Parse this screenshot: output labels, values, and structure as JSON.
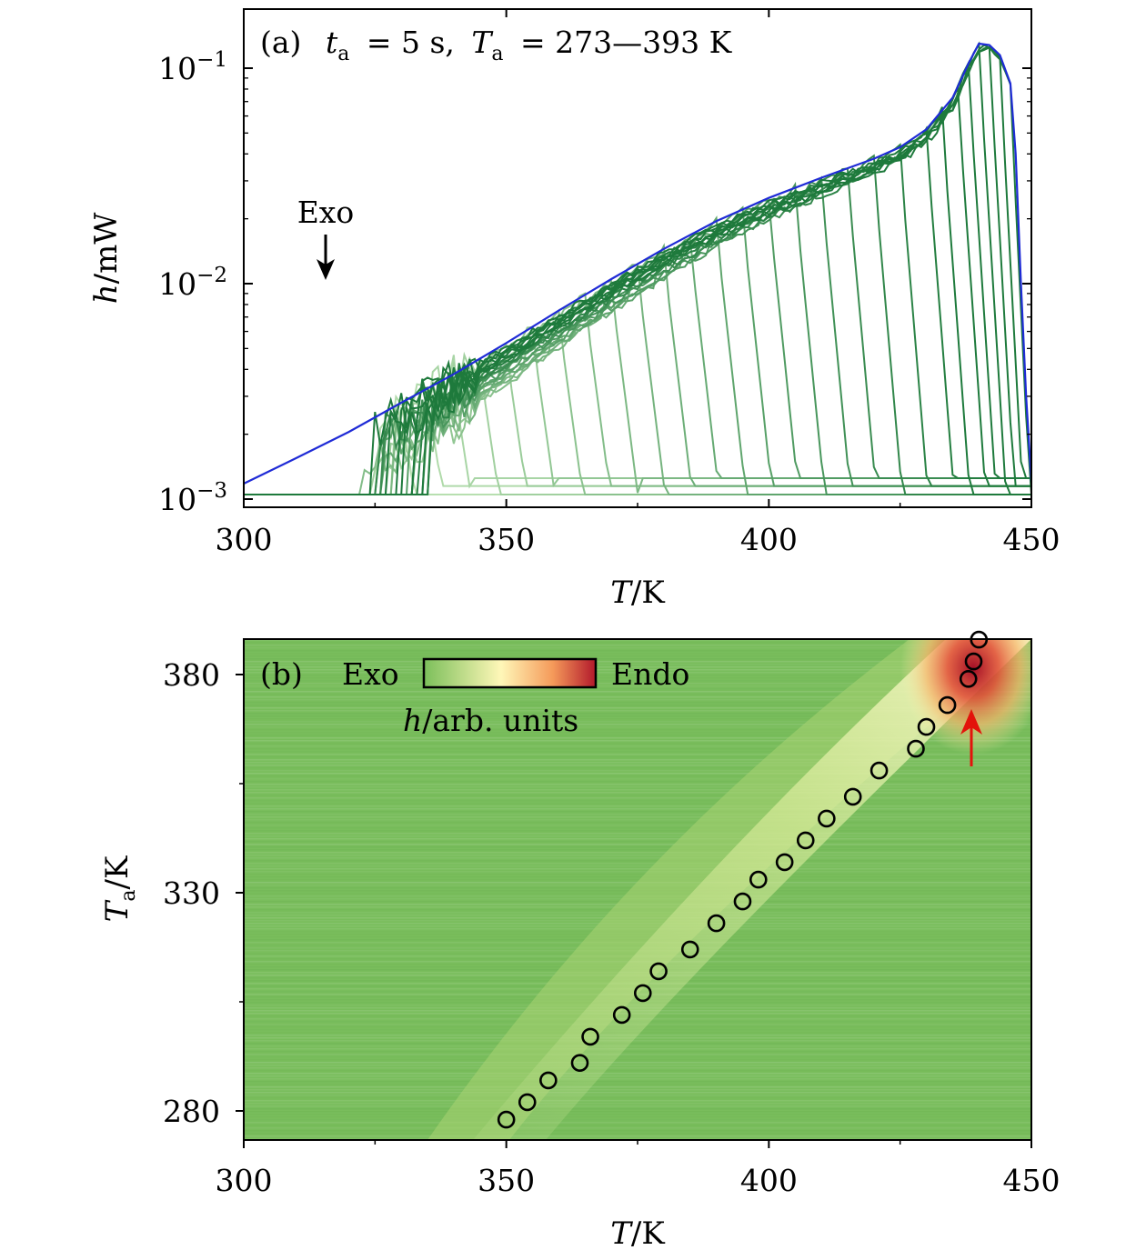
{
  "chart_data": [
    {
      "type": "line",
      "panel": "(a)",
      "annotation": {
        "prefix": "(a)",
        "ta": "t",
        "ta_sub": "a",
        "ta_eq": "= 5 s,",
        "Ta": "T",
        "Ta_sub": "a",
        "Ta_eq": "= 273—393 K"
      },
      "xlabel": "T/K",
      "ylabel": "h/mW",
      "xlim": [
        300,
        450
      ],
      "ylim": [
        0.001,
        0.2
      ],
      "yscale": "log",
      "xticks": [
        "300",
        "350",
        "400",
        "450"
      ],
      "yticks": [
        {
          "base": "10",
          "exp": "−1"
        },
        {
          "base": "10",
          "exp": "−2"
        },
        {
          "base": "10",
          "exp": "−3"
        }
      ],
      "exo_label": "Exo",
      "colors": {
        "envelope": "#1f2bd6",
        "curve_light": "#b7dfb0",
        "curve_dark": "#1e7a3c"
      },
      "envelope": {
        "x": [
          300,
          310,
          320,
          330,
          340,
          350,
          360,
          370,
          380,
          390,
          400,
          410,
          420,
          425,
          430,
          435,
          438,
          440,
          442,
          444,
          446,
          447,
          448,
          449,
          450
        ],
        "y": [
          0.00118,
          0.00155,
          0.00205,
          0.0028,
          0.0038,
          0.0053,
          0.0075,
          0.0105,
          0.0145,
          0.0195,
          0.025,
          0.031,
          0.038,
          0.043,
          0.052,
          0.073,
          0.105,
          0.13,
          0.128,
          0.115,
          0.085,
          0.04,
          0.01,
          0.003,
          0.0012
        ]
      },
      "ramp_peaks": [
        330,
        335,
        340,
        345,
        350,
        355,
        360,
        365,
        370,
        375,
        380,
        385,
        390,
        395,
        400,
        405,
        410,
        415,
        420,
        425,
        430,
        433,
        436,
        438,
        440,
        442,
        444,
        446
      ],
      "ramp_rise_start": 322
    },
    {
      "type": "heatmap",
      "panel": "(b)",
      "annotation": "(b)",
      "xlabel": "T/K",
      "ylabel": "Ta/K",
      "ylabel_main": "T",
      "ylabel_sub": "a",
      "ylabel_unit": "/K",
      "xlim": [
        300,
        450
      ],
      "ylim": [
        273,
        388
      ],
      "xticks": [
        "300",
        "350",
        "400",
        "450"
      ],
      "yticks": [
        "280",
        "330",
        "380"
      ],
      "colorbar": {
        "left_label": "Exo",
        "right_label": "Endo",
        "title": "h/arb. units",
        "colors": [
          "#7bbf5a",
          "#fff7b8",
          "#f59a5a",
          "#b2182b"
        ]
      },
      "peak_markers": {
        "x": [
          350,
          354,
          358,
          364,
          366,
          372,
          376,
          379,
          385,
          390,
          395,
          398,
          403,
          407,
          411,
          416,
          421,
          428,
          430,
          434,
          438,
          439,
          440
        ],
        "y": [
          278,
          282,
          287,
          291,
          297,
          302,
          307,
          312,
          317,
          323,
          328,
          333,
          337,
          342,
          347,
          352,
          358,
          363,
          368,
          373,
          379,
          383,
          388
        ]
      },
      "arrow_color": "#e3120b"
    }
  ]
}
